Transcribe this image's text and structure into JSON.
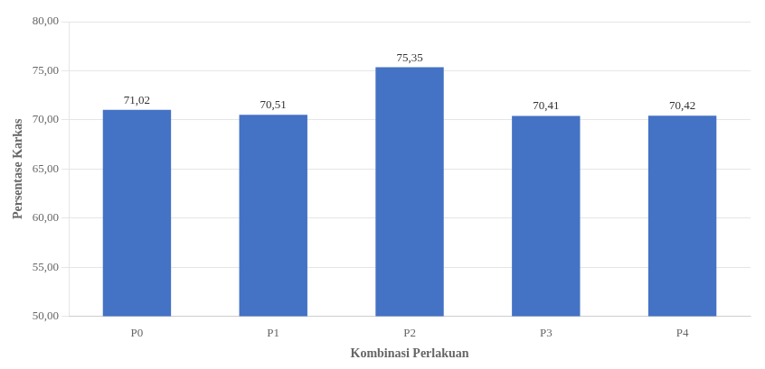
{
  "chart_data": {
    "type": "bar",
    "categories": [
      "P0",
      "P1",
      "P2",
      "P3",
      "P4"
    ],
    "values": [
      71.02,
      70.51,
      75.35,
      70.41,
      70.42
    ],
    "value_labels": [
      "71,02",
      "70,51",
      "75,35",
      "70,41",
      "70,42"
    ],
    "data_labels": true,
    "color": "#4472C4",
    "xlabel": "Kombinasi Perlakuan",
    "ylabel": "Persentase Karkas",
    "ylim": [
      50,
      80
    ],
    "yticks": [
      {
        "value": 50,
        "label": "50,00"
      },
      {
        "value": 55,
        "label": "55,00"
      },
      {
        "value": 60,
        "label": "60,00"
      },
      {
        "value": 65,
        "label": "65,00"
      },
      {
        "value": 70,
        "label": "70,00"
      },
      {
        "value": 75,
        "label": "75,00"
      },
      {
        "value": 80,
        "label": "80,00"
      }
    ],
    "grid": true
  }
}
